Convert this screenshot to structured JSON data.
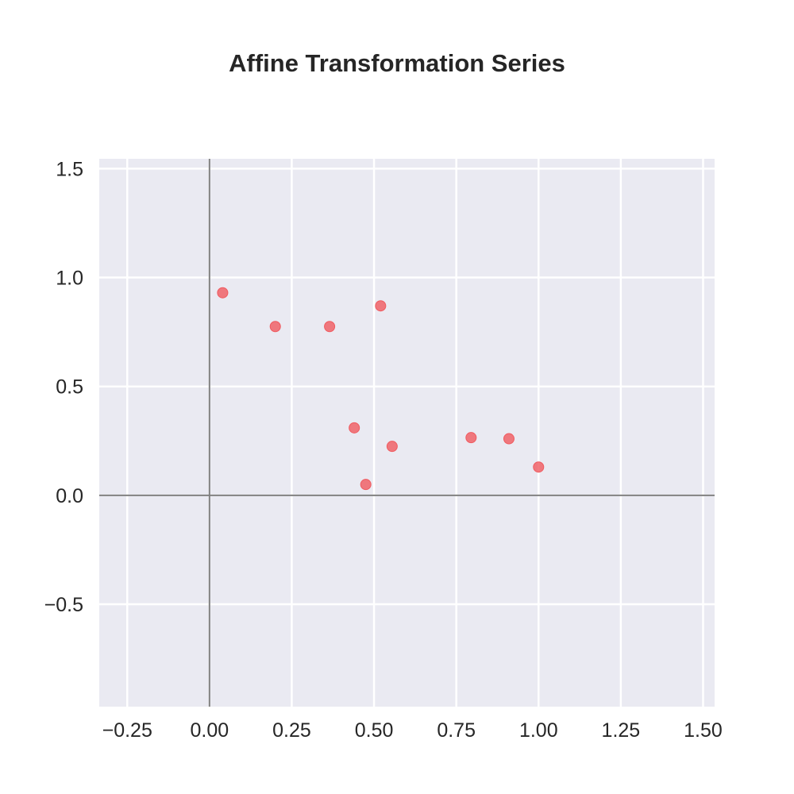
{
  "chart_data": {
    "type": "scatter",
    "title": "Affine Transformation Series",
    "xlabel": "",
    "ylabel": "",
    "xlim": [
      -0.335,
      1.535
    ],
    "ylim": [
      -0.97,
      1.545
    ],
    "xticks": [
      -0.25,
      0.0,
      0.25,
      0.5,
      0.75,
      1.0,
      1.25,
      1.5
    ],
    "xtick_labels": [
      "−0.25",
      "0.00",
      "0.25",
      "0.50",
      "0.75",
      "1.00",
      "1.25",
      "1.50"
    ],
    "yticks": [
      -0.5,
      0.0,
      0.5,
      1.0,
      1.5
    ],
    "ytick_labels": [
      "−0.5",
      "0.0",
      "0.5",
      "1.0",
      "1.5"
    ],
    "grid": true,
    "reference_lines": {
      "x": 0,
      "y": 0,
      "color": "#808080"
    },
    "series": [
      {
        "color": "#f05a5f",
        "points": [
          {
            "x": 0.04,
            "y": 0.93
          },
          {
            "x": 0.2,
            "y": 0.775
          },
          {
            "x": 0.365,
            "y": 0.775
          },
          {
            "x": 0.52,
            "y": 0.87
          },
          {
            "x": 0.44,
            "y": 0.31
          },
          {
            "x": 0.475,
            "y": 0.05
          },
          {
            "x": 0.555,
            "y": 0.225
          },
          {
            "x": 0.795,
            "y": 0.265
          },
          {
            "x": 0.91,
            "y": 0.26
          },
          {
            "x": 1.0,
            "y": 0.13
          }
        ]
      }
    ],
    "colors": {
      "background": "#eaeaf2",
      "grid": "#ffffff",
      "text": "#262626"
    }
  }
}
